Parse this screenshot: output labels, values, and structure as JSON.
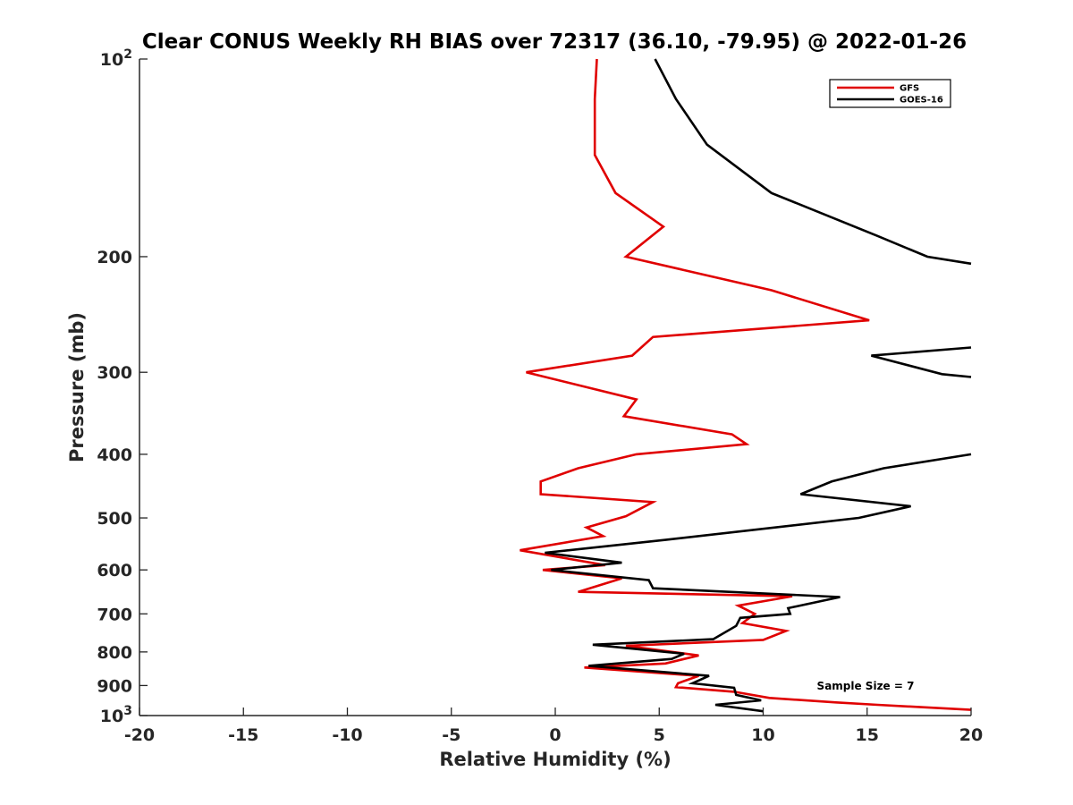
{
  "chart_data": {
    "type": "line",
    "title": "Clear CONUS Weekly RH BIAS over 72317 (36.10, -79.95) @ 2022-01-26",
    "xlabel": "Relative Humidity (%)",
    "ylabel": "Pressure (mb)",
    "xlim": [
      -20,
      20
    ],
    "ylim": [
      100,
      1000
    ],
    "y_scale": "log",
    "y_reversed": true,
    "grid": false,
    "legend_position": "top-right",
    "x_ticks": [
      "-20",
      "-15",
      "-10",
      "-5",
      "0",
      "5",
      "10",
      "15",
      "20"
    ],
    "y_ticks": [
      {
        "value": 100,
        "base": "10",
        "exp": "2",
        "label": ""
      },
      {
        "value": 200,
        "label": "200"
      },
      {
        "value": 300,
        "label": "300"
      },
      {
        "value": 400,
        "label": "400"
      },
      {
        "value": 500,
        "label": "500"
      },
      {
        "value": 600,
        "label": "600"
      },
      {
        "value": 700,
        "label": "700"
      },
      {
        "value": 800,
        "label": "800"
      },
      {
        "value": 900,
        "label": "900"
      },
      {
        "value": 1000,
        "base": "10",
        "exp": "3",
        "label": ""
      }
    ],
    "annotation": "Sample Size = 7",
    "series": [
      {
        "name": "GFS",
        "color": "#e00000",
        "x": [
          2.0,
          1.9,
          1.9,
          2.9,
          5.2,
          3.4,
          10.4,
          15.1,
          4.7,
          3.7,
          -1.4,
          3.9,
          3.3,
          8.5,
          9.2,
          3.9,
          1.1,
          -0.7,
          -0.7,
          4.7,
          3.4,
          1.5,
          2.3,
          -1.7,
          2.4,
          -0.6,
          3.2,
          1.1,
          11.4,
          8.8,
          9.6,
          9.0,
          11.1,
          10.0,
          3.4,
          6.9,
          5.3,
          1.4,
          6.9,
          5.9,
          5.8,
          8.6,
          10.3,
          13.5,
          15.5,
          20.0
        ],
        "y": [
          100,
          115,
          140,
          160,
          180,
          200,
          225,
          250,
          265,
          283,
          300,
          330,
          350,
          373,
          386,
          400,
          420,
          440,
          460,
          473,
          497,
          517,
          533,
          560,
          590,
          600,
          618,
          648,
          658,
          680,
          700,
          723,
          743,
          767,
          783,
          810,
          833,
          845,
          870,
          893,
          905,
          920,
          940,
          955,
          963,
          980
        ]
      },
      {
        "name": "GOES-16",
        "color": "#000000",
        "x": [
          4.8,
          5.8,
          7.3,
          10.4,
          15.5,
          17.9,
          20.0,
          null,
          20.0,
          15.2,
          18.6,
          20.0,
          null,
          20.0,
          15.8,
          13.3,
          11.8,
          17.1,
          14.6,
          5.3,
          -0.5,
          3.2,
          -0.2,
          4.5,
          4.7,
          13.7,
          11.2,
          11.3,
          8.9,
          8.7,
          7.6,
          1.8,
          6.2,
          5.6,
          1.6,
          7.4,
          6.6,
          8.6,
          8.7,
          9.9,
          7.7,
          10.0
        ],
        "y": [
          100,
          115,
          135,
          160,
          186,
          200,
          205,
          null,
          275,
          283,
          302,
          305,
          null,
          400,
          420,
          440,
          460,
          480,
          500,
          540,
          565,
          585,
          600,
          622,
          640,
          660,
          686,
          700,
          710,
          730,
          765,
          780,
          805,
          820,
          840,
          870,
          893,
          907,
          930,
          948,
          963,
          985
        ]
      }
    ]
  }
}
